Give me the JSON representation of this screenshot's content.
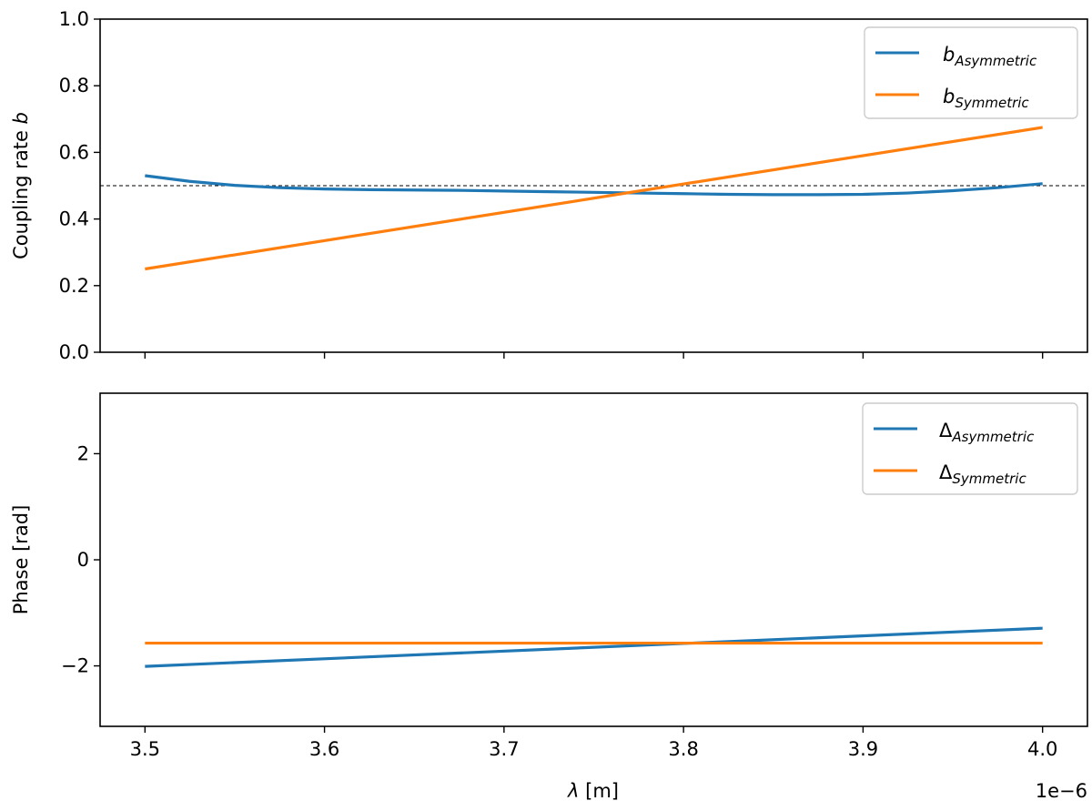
{
  "chart_data": [
    {
      "type": "line",
      "ylabel_text": "Coupling rate ",
      "ylabel_var": "b",
      "xlim": [
        3.475e-06,
        4.025e-06
      ],
      "ylim": [
        0.0,
        1.0
      ],
      "yticks": [
        0.0,
        0.2,
        0.4,
        0.6,
        0.8,
        1.0
      ],
      "ytick_labels": [
        "0.0",
        "0.2",
        "0.4",
        "0.6",
        "0.8",
        "1.0"
      ],
      "xticks": [
        3.5e-06,
        3.6e-06,
        3.7e-06,
        3.8e-06,
        3.9e-06,
        4e-06
      ],
      "xtick_labels_visible": false,
      "reference_line": {
        "y": 0.5,
        "style": "dashed",
        "color": "#000000"
      },
      "legend_position": "top-right",
      "series": [
        {
          "name_main": "b",
          "name_sub": "Asymmetric",
          "color": "#1f77b4",
          "x": [
            3.5e-06,
            3.525e-06,
            3.55e-06,
            3.575e-06,
            3.6e-06,
            3.625e-06,
            3.65e-06,
            3.675e-06,
            3.7e-06,
            3.725e-06,
            3.75e-06,
            3.775e-06,
            3.8e-06,
            3.825e-06,
            3.85e-06,
            3.875e-06,
            3.9e-06,
            3.925e-06,
            3.95e-06,
            3.975e-06,
            4e-06
          ],
          "y": [
            0.53,
            0.513,
            0.501,
            0.494,
            0.49,
            0.488,
            0.487,
            0.486,
            0.484,
            0.482,
            0.48,
            0.478,
            0.476,
            0.474,
            0.473,
            0.473,
            0.474,
            0.478,
            0.485,
            0.494,
            0.506
          ]
        },
        {
          "name_main": "b",
          "name_sub": "Symmetric",
          "color": "#ff7f0e",
          "x": [
            3.5e-06,
            4e-06
          ],
          "y": [
            0.25,
            0.675
          ]
        }
      ]
    },
    {
      "type": "line",
      "xlabel_var": "λ",
      "xlabel_unit": " [m]",
      "ylabel": "Phase [rad]",
      "xlim": [
        3.475e-06,
        4.025e-06
      ],
      "ylim": [
        -3.14,
        3.14
      ],
      "yticks": [
        -2,
        0,
        2
      ],
      "ytick_labels": [
        "−2",
        "0",
        "2"
      ],
      "xticks": [
        3.5e-06,
        3.6e-06,
        3.7e-06,
        3.8e-06,
        3.9e-06,
        4e-06
      ],
      "xtick_labels": [
        "3.5",
        "3.6",
        "3.7",
        "3.8",
        "3.9",
        "4.0"
      ],
      "offset_text": "1e−6",
      "legend_position": "top-right",
      "series": [
        {
          "name_main": "Δ",
          "name_sub": "Asymmetric",
          "color": "#1f77b4",
          "x": [
            3.5e-06,
            4e-06
          ],
          "y": [
            -2.01,
            -1.29
          ]
        },
        {
          "name_main": "Δ",
          "name_sub": "Symmetric",
          "color": "#ff7f0e",
          "x": [
            3.5e-06,
            4e-06
          ],
          "y": [
            -1.571,
            -1.571
          ]
        }
      ]
    }
  ]
}
